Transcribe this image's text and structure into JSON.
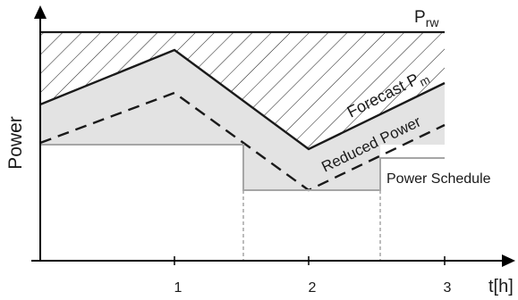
{
  "axes": {
    "y_label": "Power",
    "x_label": "t[h]",
    "x_ticks": [
      "1",
      "2",
      "3"
    ]
  },
  "labels": {
    "rated_power_main": "P",
    "rated_power_sub": "rw",
    "forecast_main": "Forecast P",
    "forecast_sub": "m",
    "reduced_power": "Reduced Power",
    "power_schedule": "Power Schedule"
  },
  "colors": {
    "line": "#1a1a1a",
    "schedule_line": "#a6a6a6",
    "fill": "#e3e3e3",
    "axis": "#000000"
  }
}
